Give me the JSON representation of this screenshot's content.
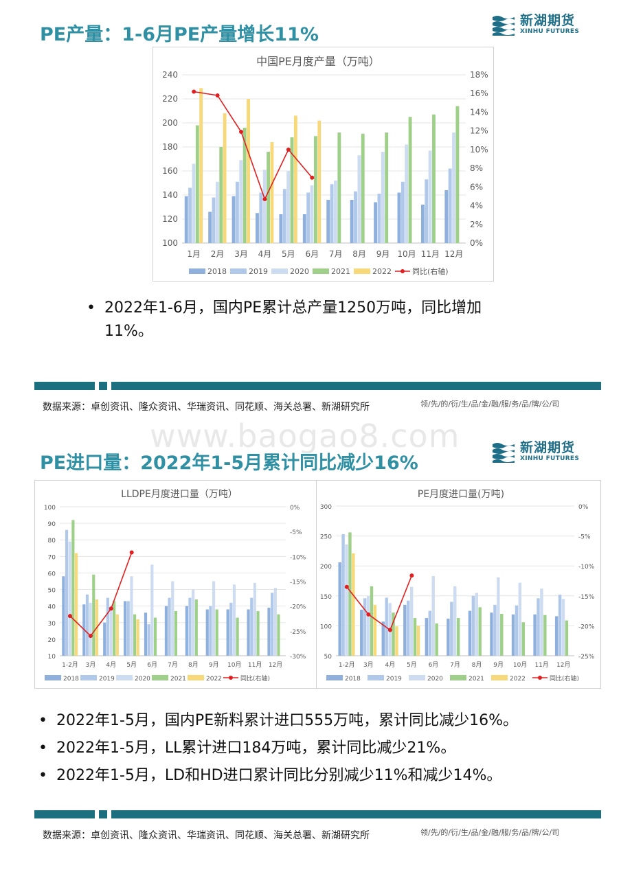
{
  "brand": {
    "logo_cn": "新湖期货",
    "logo_en": "XINHU FUTURES",
    "primary_color": "#2f8fa3",
    "band_color": "#1b6f7e"
  },
  "section1": {
    "heading": "PE产量：1-6月PE产量增长11%",
    "bullets": [
      "2022年1-6月，国内PE累计总产量1250万吨，同比增加",
      "11%。"
    ]
  },
  "section2": {
    "heading": "PE进口量：2022年1-5月累计同比减少16%",
    "bullets": [
      "2022年1-5月，国内PE新料累计进口555万吨，累计同比减少16%。",
      "2022年1-5月，LL累计进口184万吨，累计同比减少21%。",
      "2022年1-5月，LD和HD进口累计同比分别减少11%和减少14%。"
    ]
  },
  "footer": {
    "source": "数据来源：卓创资讯、隆众资讯、华瑞资讯、同花顺、海关总署、新湖研究所",
    "slogan": "领/先/的/衍/生/品/金/融/服/务/品/牌/公/司"
  },
  "watermark": "www.baogao8.com",
  "chart_data": [
    {
      "type": "bar",
      "title": "中国PE月度产量（万吨）",
      "categories": [
        "1月",
        "2月",
        "3月",
        "4月",
        "5月",
        "6月",
        "7月",
        "8月",
        "9月",
        "10月",
        "11月",
        "12月"
      ],
      "ylim": [
        100,
        240
      ],
      "yticks": [
        100,
        120,
        140,
        160,
        180,
        200,
        220,
        240
      ],
      "y2lim": [
        0,
        18
      ],
      "y2ticks": [
        "0%",
        "2%",
        "4%",
        "6%",
        "8%",
        "10%",
        "12%",
        "14%",
        "16%",
        "18%"
      ],
      "series": [
        {
          "name": "2018",
          "color": "#8fb0dc",
          "values": [
            139,
            126,
            139,
            125,
            124,
            124,
            136,
            136,
            134,
            142,
            132,
            144
          ]
        },
        {
          "name": "2019",
          "color": "#b0c9ea",
          "values": [
            146,
            138,
            151,
            142,
            145,
            142,
            149,
            143,
            141,
            151,
            153,
            162
          ]
        },
        {
          "name": "2020",
          "color": "#cddcf1",
          "values": [
            166,
            151,
            169,
            161,
            160,
            148,
            152,
            173,
            176,
            182,
            177,
            192
          ]
        },
        {
          "name": "2021",
          "color": "#9fd08a",
          "values": [
            198,
            180,
            196,
            176,
            188,
            189,
            192,
            191,
            192,
            205,
            207,
            214
          ]
        },
        {
          "name": "2022",
          "color": "#f7d97a",
          "values": [
            229,
            208,
            220,
            184,
            206,
            202,
            null,
            null,
            null,
            null,
            null,
            null
          ]
        }
      ],
      "line": {
        "name": "同比(右轴)",
        "color": "#e02020",
        "values": [
          16.2,
          15.8,
          11.9,
          4.7,
          10.0,
          7.0,
          null,
          null,
          null,
          null,
          null,
          null
        ]
      },
      "legend_position": "bottom"
    },
    {
      "type": "bar",
      "title": "LLDPE月度进口量（万吨）",
      "categories": [
        "1-2月",
        "3月",
        "4月",
        "5月",
        "6月",
        "7月",
        "8月",
        "9月",
        "10月",
        "11月",
        "12月"
      ],
      "ylim": [
        10,
        100
      ],
      "yticks": [
        10,
        20,
        30,
        40,
        50,
        60,
        70,
        80,
        90,
        100
      ],
      "y2lim": [
        -30,
        0
      ],
      "y2ticks": [
        "-30%",
        "-25%",
        "-20%",
        "-15%",
        "-10%",
        "-5%",
        "0%"
      ],
      "series": [
        {
          "name": "2018",
          "color": "#8fb0dc",
          "values": [
            58,
            41,
            30,
            43,
            36,
            40,
            40,
            38,
            38,
            38,
            39
          ]
        },
        {
          "name": "2019",
          "color": "#b0c9ea",
          "values": [
            86,
            47,
            45,
            43,
            29,
            45,
            45,
            40,
            42,
            45,
            48
          ]
        },
        {
          "name": "2020",
          "color": "#cddcf1",
          "values": [
            79,
            42,
            38,
            58,
            65,
            55,
            50,
            55,
            53,
            54,
            51
          ]
        },
        {
          "name": "2021",
          "color": "#9fd08a",
          "values": [
            92,
            59,
            43,
            35,
            33,
            37,
            44,
            38,
            33,
            37,
            35
          ]
        },
        {
          "name": "2022",
          "color": "#f7d97a",
          "values": [
            72,
            44,
            35,
            32,
            null,
            null,
            null,
            null,
            null,
            null,
            null
          ]
        }
      ],
      "line": {
        "name": "同比(右轴)",
        "color": "#e02020",
        "values": [
          -22,
          -26,
          -20.5,
          -9.2,
          null,
          null,
          null,
          null,
          null,
          null,
          null
        ]
      },
      "legend_position": "bottom"
    },
    {
      "type": "bar",
      "title": "PE月度进口量(万吨)",
      "categories": [
        "1-2月",
        "3月",
        "4月",
        "5月",
        "6月",
        "7月",
        "8月",
        "9月",
        "10月",
        "11月",
        "12月"
      ],
      "ylim": [
        50,
        300
      ],
      "yticks": [
        50,
        100,
        150,
        200,
        250,
        300
      ],
      "y2lim": [
        -25,
        0
      ],
      "y2ticks": [
        "-25%",
        "-20%",
        "-15%",
        "-10%",
        "-5%",
        "0%"
      ],
      "series": [
        {
          "name": "2018",
          "color": "#8fb0dc",
          "values": [
            206,
            127,
            107,
            135,
            113,
            112,
            125,
            122,
            119,
            119,
            116
          ]
        },
        {
          "name": "2019",
          "color": "#b0c9ea",
          "values": [
            253,
            146,
            147,
            142,
            125,
            140,
            150,
            135,
            134,
            146,
            152
          ]
        },
        {
          "name": "2020",
          "color": "#cddcf1",
          "values": [
            236,
            150,
            138,
            165,
            183,
            166,
            155,
            181,
            172,
            162,
            145
          ]
        },
        {
          "name": "2021",
          "color": "#9fd08a",
          "values": [
            256,
            166,
            122,
            113,
            104,
            113,
            131,
            120,
            106,
            118,
            109
          ]
        },
        {
          "name": "2022",
          "color": "#f7d97a",
          "values": [
            221,
            135,
            99,
            100,
            null,
            null,
            null,
            null,
            null,
            null,
            null
          ]
        }
      ],
      "line": {
        "name": "同比(右轴)",
        "color": "#e02020",
        "values": [
          -13.5,
          -18.1,
          -20.7,
          -11.6,
          null,
          null,
          null,
          null,
          null,
          null,
          null
        ]
      },
      "legend_position": "bottom"
    }
  ]
}
